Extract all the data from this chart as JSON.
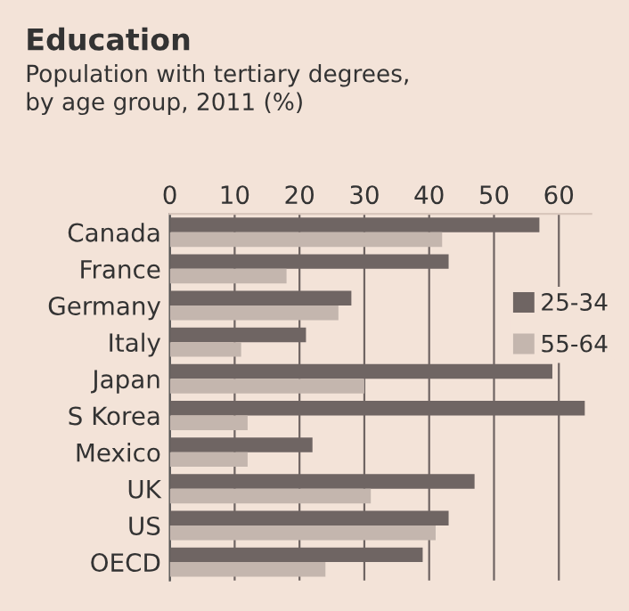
{
  "chart_data": {
    "type": "bar",
    "orientation": "horizontal",
    "title": "Education",
    "subtitle": "Population with tertiary degrees,\nby age group, 2011 (%)",
    "categories": [
      "Canada",
      "France",
      "Germany",
      "Italy",
      "Japan",
      "S Korea",
      "Mexico",
      "UK",
      "US",
      "OECD"
    ],
    "series": [
      {
        "name": "25-34",
        "color": "#6f6563",
        "values": [
          57,
          43,
          28,
          21,
          59,
          64,
          22,
          47,
          43,
          39
        ]
      },
      {
        "name": "55-64",
        "color": "#c4b6ae",
        "values": [
          42,
          18,
          26,
          11,
          30,
          12,
          12,
          31,
          41,
          24
        ]
      }
    ],
    "xlim": [
      0,
      65
    ],
    "xticks": [
      0,
      10,
      20,
      30,
      40,
      50,
      60
    ],
    "grid": "x",
    "legend": "right"
  }
}
